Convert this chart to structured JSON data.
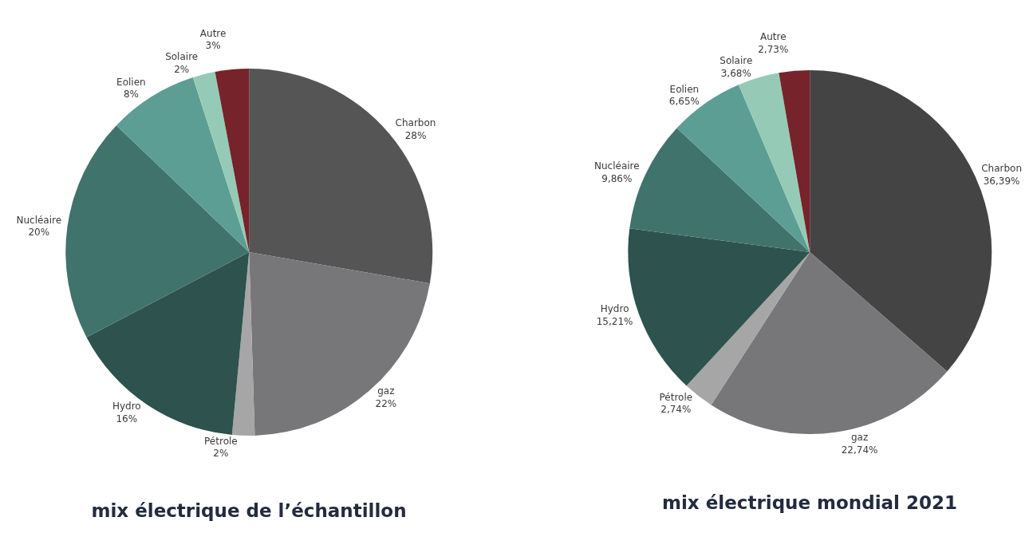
{
  "chart_data": [
    {
      "type": "pie",
      "title": "mix électrique de l’échantillon",
      "categories": [
        "Charbon",
        "gaz",
        "Pétrole",
        "Hydro",
        "Nucléaire",
        "Eolien",
        "Solaire",
        "Autre"
      ],
      "values": [
        28,
        22,
        2,
        16,
        20,
        8,
        2,
        3
      ],
      "value_labels": [
        "28%",
        "22%",
        "2%",
        "16%",
        "20%",
        "8%",
        "2%",
        "3%"
      ],
      "colors": [
        "#555555",
        "#77777a",
        "#a6a6a6",
        "#2e524d",
        "#40736b",
        "#5c9e93",
        "#95cbb6",
        "#76232b"
      ]
    },
    {
      "type": "pie",
      "title": "mix électrique mondial 2021",
      "categories": [
        "Charbon",
        "gaz",
        "Pétrole",
        "Hydro",
        "Nucléaire",
        "Eolien",
        "Solaire",
        "Autre"
      ],
      "values": [
        36.39,
        22.74,
        2.74,
        15.21,
        9.86,
        6.65,
        3.68,
        2.73
      ],
      "value_labels": [
        "36,39%",
        "22,74%",
        "2,74%",
        "15,21%",
        "9,86%",
        "6,65%",
        "3,68%",
        "2,73%"
      ],
      "colors": [
        "#444444",
        "#77777a",
        "#a6a6a6",
        "#2e524d",
        "#40736b",
        "#5c9e93",
        "#95cbb6",
        "#76232b"
      ]
    }
  ]
}
